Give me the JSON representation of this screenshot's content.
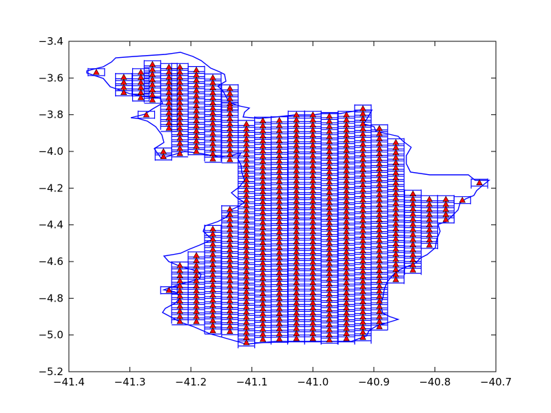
{
  "chart_data": {
    "type": "scatter",
    "title": "",
    "xlabel": "",
    "ylabel": "",
    "xlim": [
      -41.4,
      -40.7
    ],
    "ylim": [
      -5.2,
      -3.4
    ],
    "xticks": [
      -41.4,
      -41.3,
      -41.2,
      -41.1,
      -41.0,
      -40.9,
      -40.8,
      -40.7
    ],
    "yticks": [
      -5.2,
      -5.0,
      -4.8,
      -4.6,
      -4.4,
      -4.2,
      -4.0,
      -3.8,
      -3.6,
      -3.4
    ],
    "xtick_labels": [
      "−41.4",
      "−41.3",
      "−41.2",
      "−41.1",
      "−41.0",
      "−40.9",
      "−40.8",
      "−40.7"
    ],
    "ytick_labels": [
      "−5.2",
      "−5.0",
      "−4.8",
      "−4.6",
      "−4.4",
      "−4.2",
      "−4.0",
      "−3.8",
      "−3.6",
      "−3.4"
    ],
    "grid": false,
    "marker": "triangle",
    "marker_color": "#ff0000",
    "outline_color": "#0000ff",
    "cell_size_y": 0.0277,
    "columns": [
      {
        "x": -41.355,
        "y": [
          -3.568,
          -3.568
        ]
      },
      {
        "x": -41.31,
        "y": [
          -3.595,
          -3.678
        ]
      },
      {
        "x": -41.282,
        "y": [
          -3.568,
          -3.706
        ]
      },
      {
        "x": -41.273,
        "y": [
          -3.8,
          -3.8
        ]
      },
      {
        "x": -41.263,
        "y": [
          -3.525,
          -3.711
        ]
      },
      {
        "x": -41.245,
        "y": [
          -4.0,
          -4.028
        ]
      },
      {
        "x": -41.236,
        "y": [
          -3.54,
          -3.86
        ]
      },
      {
        "x": -41.236,
        "y": [
          -4.756,
          -4.756
        ]
      },
      {
        "x": -41.218,
        "y": [
          -3.54,
          -4.0
        ]
      },
      {
        "x": -41.218,
        "y": [
          -4.621,
          -4.916
        ]
      },
      {
        "x": -41.191,
        "y": [
          -3.556,
          -4.0
        ]
      },
      {
        "x": -41.191,
        "y": [
          -4.566,
          -4.918
        ]
      },
      {
        "x": -41.164,
        "y": [
          -3.597,
          -4.032
        ]
      },
      {
        "x": -41.164,
        "y": [
          -4.422,
          -4.971
        ]
      },
      {
        "x": -41.136,
        "y": [
          -3.656,
          -4.04
        ]
      },
      {
        "x": -41.136,
        "y": [
          -4.315,
          -4.99
        ]
      },
      {
        "x": -41.136,
        "y": [
          -3.755,
          -3.755
        ]
      },
      {
        "x": -41.109,
        "y": [
          -3.85,
          -5.05
        ]
      },
      {
        "x": -41.082,
        "y": [
          -3.832,
          -5.024
        ]
      },
      {
        "x": -41.055,
        "y": [
          -3.83,
          -5.03
        ]
      },
      {
        "x": -41.027,
        "y": [
          -3.8,
          -5.022
        ]
      },
      {
        "x": -41.0,
        "y": [
          -3.8,
          -5.03
        ]
      },
      {
        "x": -40.973,
        "y": [
          -3.807,
          -5.029
        ]
      },
      {
        "x": -40.945,
        "y": [
          -3.8,
          -5.03
        ]
      },
      {
        "x": -40.918,
        "y": [
          -3.766,
          -5.025
        ]
      },
      {
        "x": -40.891,
        "y": [
          -3.874,
          -4.952
        ]
      },
      {
        "x": -40.864,
        "y": [
          -3.95,
          -4.7
        ]
      },
      {
        "x": -40.836,
        "y": [
          -4.23,
          -4.65
        ]
      },
      {
        "x": -40.809,
        "y": [
          -4.26,
          -4.51
        ]
      },
      {
        "x": -40.782,
        "y": [
          -4.26,
          -4.37
        ]
      },
      {
        "x": -40.755,
        "y": [
          -4.265,
          -4.265
        ]
      },
      {
        "x": -40.727,
        "y": [
          -4.17,
          -4.18
        ]
      }
    ]
  }
}
